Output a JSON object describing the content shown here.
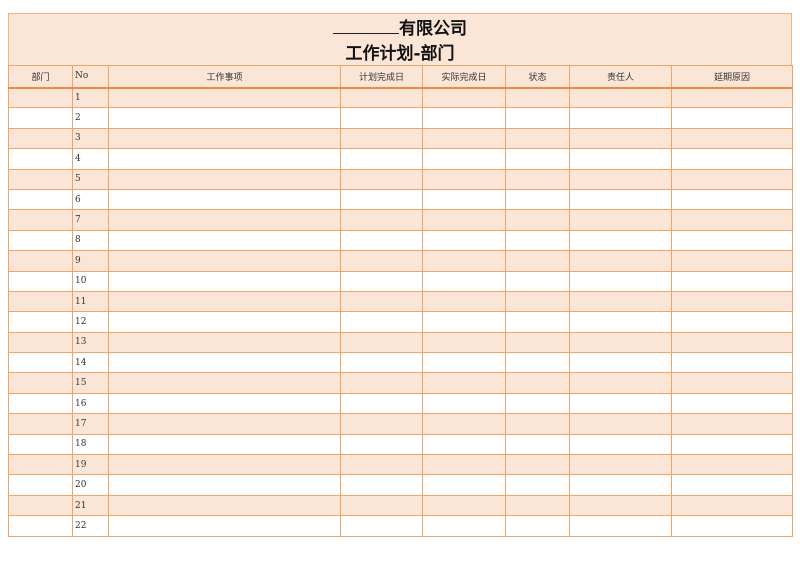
{
  "title": {
    "company_suffix": "有限公司",
    "subtitle": "工作计划-部门"
  },
  "columns": [
    "部门",
    "No",
    "工作事项",
    "计划完成日",
    "实际完成日",
    "状态",
    "责任人",
    "延期原因"
  ],
  "rows": [
    "1",
    "2",
    "3",
    "4",
    "5",
    "6",
    "7",
    "8",
    "9",
    "10",
    "11",
    "12",
    "13",
    "14",
    "15",
    "16",
    "17",
    "18",
    "19",
    "20",
    "21",
    "22"
  ],
  "colors": {
    "fill": "#FBE5D6",
    "border": "#F0A468"
  }
}
